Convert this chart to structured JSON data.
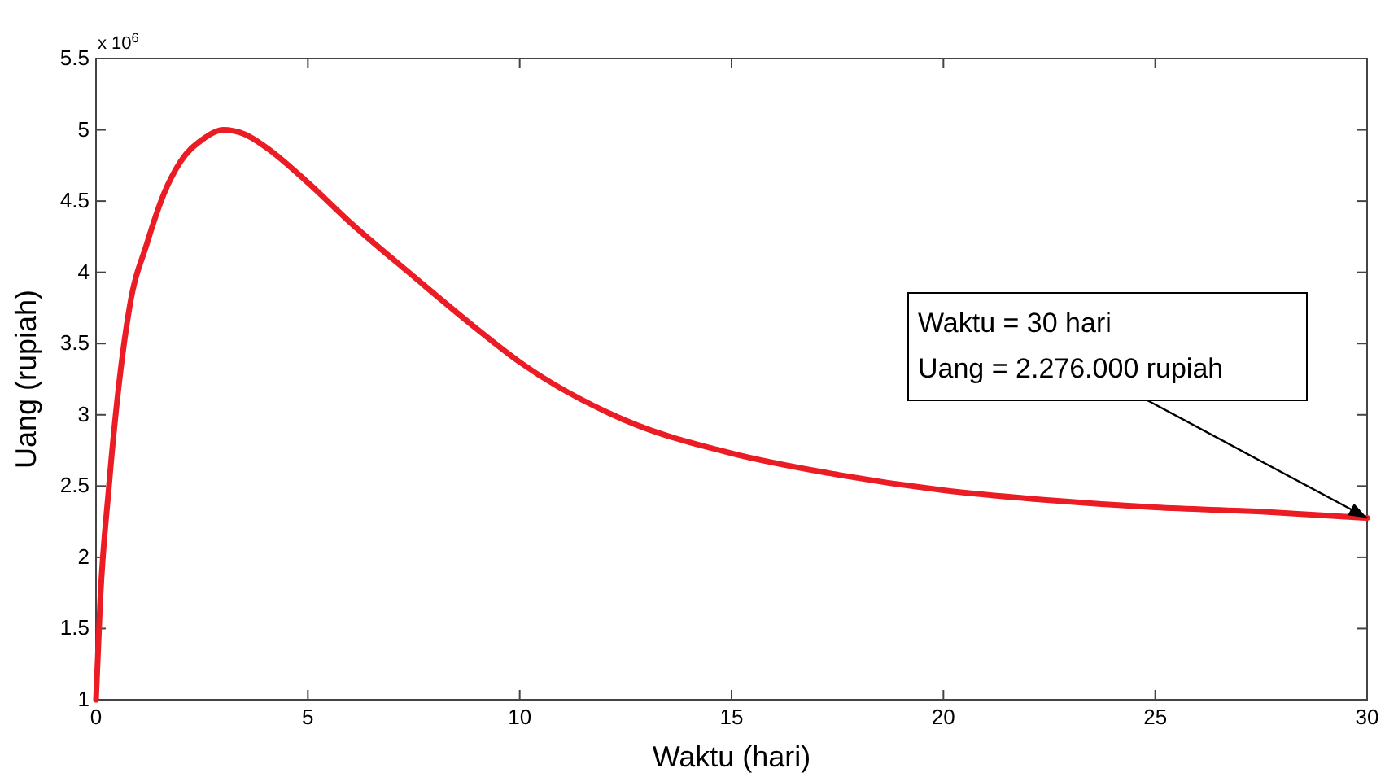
{
  "chart_data": {
    "type": "line",
    "xlabel": "Waktu (hari)",
    "ylabel": "Uang (rupiah)",
    "x": [
      0,
      0.1,
      0.3,
      0.8,
      1.2,
      1.6,
      2,
      2.5,
      3,
      3.5,
      4,
      5,
      6,
      7.5,
      9,
      10,
      12.5,
      15,
      17.5,
      20,
      22.5,
      25,
      27.5,
      30
    ],
    "series": [
      {
        "color": "#ec1c24",
        "values": [
          1.0,
          1.7,
          2.48,
          3.77,
          4.2,
          4.55,
          4.78,
          4.93,
          5.0,
          4.97,
          4.88,
          4.63,
          4.35,
          3.97,
          3.6,
          3.37,
          2.96,
          2.73,
          2.58,
          2.47,
          2.4,
          2.35,
          2.32,
          2.276
        ]
      }
    ],
    "xlim": [
      0,
      30
    ],
    "xticks": [
      0,
      5,
      10,
      15,
      20,
      25,
      30
    ],
    "ylim": [
      1,
      5.5
    ],
    "yticks": [
      1,
      1.5,
      2,
      2.5,
      3,
      3.5,
      4,
      4.5,
      5,
      5.5
    ],
    "grid": false,
    "marker": "none",
    "line_style": "solid",
    "annotations": [
      "x 10$^{6}$",
      {
        "text": "Waktu = 30 hari\nUang = 2.276.000 rupiah",
        "x": 30,
        "y": 2.276
      }
    ]
  }
}
